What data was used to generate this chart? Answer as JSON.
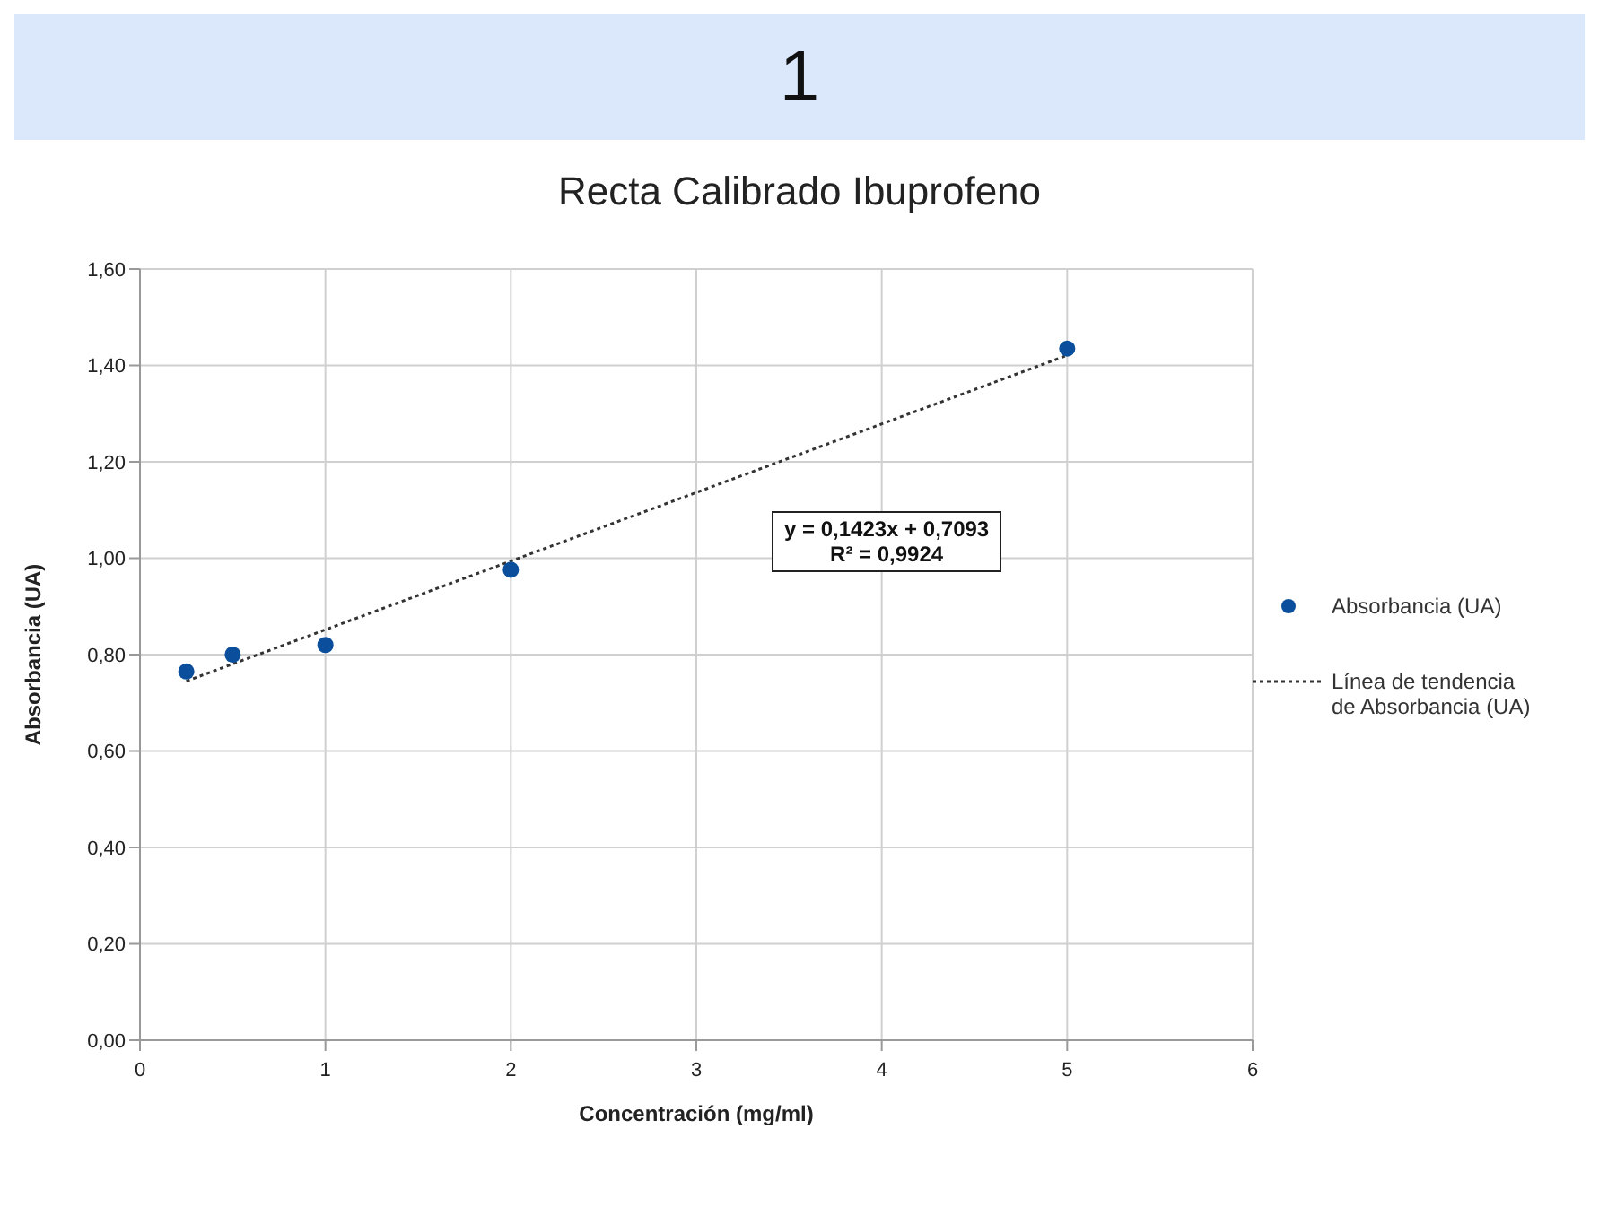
{
  "chart_data": {
    "type": "scatter",
    "title": "Recta Calibrado Ibuprofeno",
    "xlabel": "Concentración (mg/ml)",
    "ylabel": "Absorbancia (UA)",
    "annotations": [
      "1",
      "y = 0,1423x + 0,7093",
      "R² = 0,9924"
    ],
    "xlim": [
      0,
      6
    ],
    "xticks": [
      0,
      1,
      2,
      3,
      4,
      5,
      6
    ],
    "ylim": [
      0,
      1.6
    ],
    "yticks": [
      {
        "value": 0,
        "label": "0,00"
      },
      {
        "value": 0.2,
        "label": "0,20"
      },
      {
        "value": 0.4,
        "label": "0,40"
      },
      {
        "value": 0.6,
        "label": "0,60"
      },
      {
        "value": 0.8,
        "label": "0,80"
      },
      {
        "value": 1,
        "label": "1,00"
      },
      {
        "value": 1.2,
        "label": "1,20"
      },
      {
        "value": 1.4,
        "label": "1,40"
      },
      {
        "value": 1.6,
        "label": "1,60"
      }
    ],
    "grid": true,
    "legend": "right",
    "marker": "circle",
    "series": [
      {
        "name": "Absorbancia (UA)",
        "color": "#0b4f9c",
        "x": [
          0.25,
          0.5,
          1,
          2,
          5
        ],
        "values": [
          0.765,
          0.8,
          0.82,
          0.976,
          1.435
        ]
      },
      {
        "name": "Línea de tendencia de Absorbancia (UA)",
        "type": "line",
        "color": "#333333",
        "line_style": "dotted",
        "marker": "none",
        "x": [
          0.25,
          5
        ],
        "values": [
          0.745,
          1.421
        ]
      }
    ]
  }
}
